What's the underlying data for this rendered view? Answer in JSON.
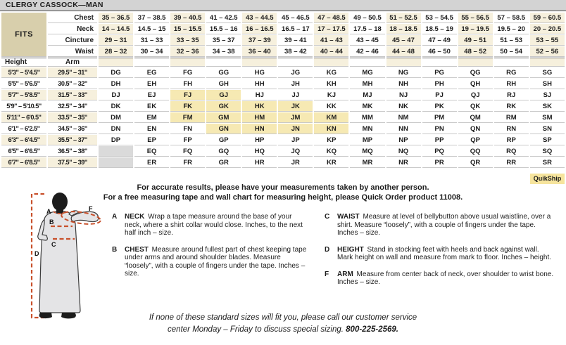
{
  "title": "CLERGY CASSOCK—MAN",
  "fits": {
    "label": "FITS",
    "rows": [
      {
        "label": "Chest",
        "values": [
          "35 – 36.5",
          "37 – 38.5",
          "39 – 40.5",
          "41 – 42.5",
          "43 – 44.5",
          "45 – 46.5",
          "47 – 48.5",
          "49 – 50.5",
          "51 – 52.5",
          "53 – 54.5",
          "55 – 56.5",
          "57 – 58.5",
          "59 – 60.5"
        ]
      },
      {
        "label": "Neck",
        "values": [
          "14 – 14.5",
          "14.5 – 15",
          "15 – 15.5",
          "15.5 – 16",
          "16 – 16.5",
          "16.5 – 17",
          "17 – 17.5",
          "17.5 – 18",
          "18 – 18.5",
          "18.5 – 19",
          "19 – 19.5",
          "19.5 – 20",
          "20 – 20.5"
        ]
      },
      {
        "label": "Cincture",
        "values": [
          "29 – 31",
          "31 – 33",
          "33 – 35",
          "35 – 37",
          "37 – 39",
          "39 – 41",
          "41 – 43",
          "43 – 45",
          "45 – 47",
          "47 – 49",
          "49 – 51",
          "51 – 53",
          "53 – 55"
        ]
      },
      {
        "label": "Waist",
        "values": [
          "28 – 32",
          "30 – 34",
          "32 – 36",
          "34 – 38",
          "36 – 40",
          "38 – 42",
          "40 – 44",
          "42 – 46",
          "44 – 48",
          "46 – 50",
          "48 – 52",
          "50 – 54",
          "52 – 56"
        ]
      }
    ]
  },
  "height_label": "Height",
  "arm_label": "Arm",
  "size_rows": [
    {
      "height": "5'3\" – 5'4.5\"",
      "arm": "29.5\" – 31\"",
      "codes": [
        "DG",
        "EG",
        "FG",
        "GG",
        "HG",
        "JG",
        "KG",
        "MG",
        "NG",
        "PG",
        "QG",
        "RG",
        "SG"
      ]
    },
    {
      "height": "5'5\" – 5'6.5\"",
      "arm": "30.5\" – 32\"",
      "codes": [
        "DH",
        "EH",
        "FH",
        "GH",
        "HH",
        "JH",
        "KH",
        "MH",
        "NH",
        "PH",
        "QH",
        "RH",
        "SH"
      ]
    },
    {
      "height": "5'7\" – 5'8.5\"",
      "arm": "31.5\" – 33\"",
      "codes": [
        "DJ",
        "EJ",
        "FJ",
        "GJ",
        "HJ",
        "JJ",
        "KJ",
        "MJ",
        "NJ",
        "PJ",
        "QJ",
        "RJ",
        "SJ"
      ]
    },
    {
      "height": "5'9\" – 5'10.5\"",
      "arm": "32.5\" – 34\"",
      "codes": [
        "DK",
        "EK",
        "FK",
        "GK",
        "HK",
        "JK",
        "KK",
        "MK",
        "NK",
        "PK",
        "QK",
        "RK",
        "SK"
      ]
    },
    {
      "height": "5'11\" – 6'0.5\"",
      "arm": "33.5\" – 35\"",
      "codes": [
        "DM",
        "EM",
        "FM",
        "GM",
        "HM",
        "JM",
        "KM",
        "MM",
        "NM",
        "PM",
        "QM",
        "RM",
        "SM"
      ]
    },
    {
      "height": "6'1\" – 6'2.5\"",
      "arm": "34.5\" – 36\"",
      "codes": [
        "DN",
        "EN",
        "FN",
        "GN",
        "HN",
        "JN",
        "KN",
        "MN",
        "NN",
        "PN",
        "QN",
        "RN",
        "SN"
      ]
    },
    {
      "height": "6'3\" – 6'4.5\"",
      "arm": "35.5\" – 37\"",
      "codes": [
        "DP",
        "EP",
        "FP",
        "GP",
        "HP",
        "JP",
        "KP",
        "MP",
        "NP",
        "PP",
        "QP",
        "RP",
        "SP"
      ]
    },
    {
      "height": "6'5\" – 6'6.5\"",
      "arm": "36.5\" – 38\"",
      "codes": [
        "",
        "EQ",
        "FQ",
        "GQ",
        "HQ",
        "JQ",
        "KQ",
        "MQ",
        "NQ",
        "PQ",
        "QQ",
        "RQ",
        "SQ"
      ]
    },
    {
      "height": "6'7\" – 6'8.5\"",
      "arm": "37.5\" – 39\"",
      "codes": [
        "",
        "ER",
        "FR",
        "GR",
        "HR",
        "JR",
        "KR",
        "MR",
        "NR",
        "PR",
        "QR",
        "RR",
        "SR"
      ]
    }
  ],
  "highlighted_codes": [
    "FJ",
    "GJ",
    "FK",
    "GK",
    "HK",
    "JK",
    "FM",
    "GM",
    "HM",
    "JM",
    "KM",
    "GN",
    "HN",
    "JN",
    "KN"
  ],
  "quikship_label": "QuikShip",
  "notes": {
    "line1": "For accurate results, please have your measurements taken by another person.",
    "line2": "For a free measuring tape and wall chart for measuring height, please Quick Order product 11008."
  },
  "instructions": {
    "left": [
      {
        "letter": "A",
        "term": "NECK",
        "text": "Wrap a tape measure around the base of your neck, where a shirt collar would close. Inches, to the next half inch – size."
      },
      {
        "letter": "B",
        "term": "CHEST",
        "text": "Measure around fullest part of chest keeping tape under arms and around shoulder blades. Measure “loosely”, with a couple of fingers under the tape. Inches – size."
      }
    ],
    "right": [
      {
        "letter": "C",
        "term": "WAIST",
        "text": "Measure at level of bellybutton above usual waistline, over a shirt. Measure “loosely”, with a couple of fingers under the tape. Inches – size."
      },
      {
        "letter": "D",
        "term": "HEIGHT",
        "text": "Stand in stocking feet with heels and back against wall. Mark height on wall and measure from mark to floor. Inches – height."
      },
      {
        "letter": "F",
        "term": "ARM",
        "text": "Measure from center back of neck, over shoulder to wrist bone. Inches – size."
      }
    ]
  },
  "footer": {
    "line1": "If none of these standard sizes will fit you, please call our customer service",
    "line2_prefix": "center Monday – Friday to discuss special sizing. ",
    "phone": "800-225-2569."
  },
  "figure": {
    "labels": {
      "a": "A",
      "b": "B",
      "c": "C",
      "d": "D",
      "f": "F"
    }
  },
  "colors": {
    "cream": "#f6f0dd",
    "tan": "#d8cfac",
    "highlight_yellow": "#f6e9b3",
    "quikship_yellow": "#f6e49d",
    "blank_gray": "#dadada",
    "titlebar_gray": "#d3d3d3",
    "dash_orange": "#c8502b"
  }
}
